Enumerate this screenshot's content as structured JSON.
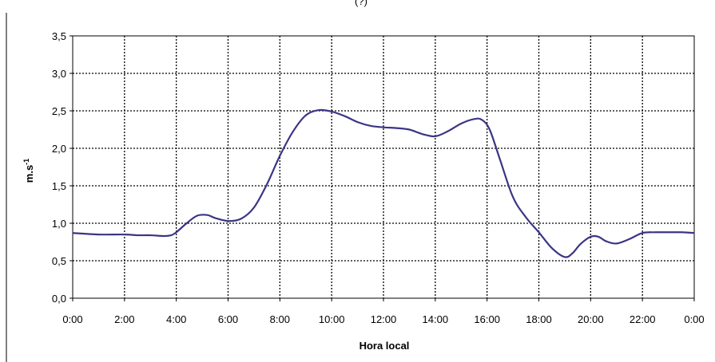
{
  "chart_data": {
    "type": "line",
    "title": "(?)",
    "xlabel": "Hora local",
    "ylabel": "m.s",
    "ylabel_superscript": "-1",
    "xlim": [
      0,
      24
    ],
    "ylim": [
      0,
      3.5
    ],
    "x_ticks": [
      {
        "value": 0,
        "label": "0:00"
      },
      {
        "value": 2,
        "label": "2:00"
      },
      {
        "value": 4,
        "label": "4:00"
      },
      {
        "value": 6,
        "label": "6:00"
      },
      {
        "value": 8,
        "label": "8:00"
      },
      {
        "value": 10,
        "label": "10:00"
      },
      {
        "value": 12,
        "label": "12:00"
      },
      {
        "value": 14,
        "label": "14:00"
      },
      {
        "value": 16,
        "label": "16:00"
      },
      {
        "value": 18,
        "label": "18:00"
      },
      {
        "value": 20,
        "label": "20:00"
      },
      {
        "value": 22,
        "label": "22:00"
      },
      {
        "value": 24,
        "label": "0:00"
      }
    ],
    "y_ticks": [
      {
        "value": 0,
        "label": "0,0"
      },
      {
        "value": 0.5,
        "label": "0,5"
      },
      {
        "value": 1.0,
        "label": "1,0"
      },
      {
        "value": 1.5,
        "label": "1,5"
      },
      {
        "value": 2.0,
        "label": "2,0"
      },
      {
        "value": 2.5,
        "label": "2,5"
      },
      {
        "value": 3.0,
        "label": "3,0"
      },
      {
        "value": 3.5,
        "label": "3,5"
      }
    ],
    "grid": true,
    "grid_style": "dotted",
    "series": [
      {
        "color": "#3b3585",
        "points": [
          [
            0,
            0.87
          ],
          [
            1,
            0.85
          ],
          [
            2,
            0.85
          ],
          [
            2.5,
            0.84
          ],
          [
            3,
            0.84
          ],
          [
            3.5,
            0.83
          ],
          [
            3.8,
            0.84
          ],
          [
            4,
            0.88
          ],
          [
            4.4,
            1.0
          ],
          [
            4.8,
            1.1
          ],
          [
            5.2,
            1.11
          ],
          [
            5.5,
            1.07
          ],
          [
            6,
            1.03
          ],
          [
            6.5,
            1.06
          ],
          [
            7,
            1.21
          ],
          [
            7.5,
            1.52
          ],
          [
            8,
            1.9
          ],
          [
            8.5,
            2.22
          ],
          [
            9,
            2.44
          ],
          [
            9.5,
            2.51
          ],
          [
            10,
            2.49
          ],
          [
            10.5,
            2.43
          ],
          [
            11,
            2.35
          ],
          [
            11.5,
            2.3
          ],
          [
            12,
            2.28
          ],
          [
            12.5,
            2.27
          ],
          [
            13,
            2.25
          ],
          [
            13.5,
            2.19
          ],
          [
            14,
            2.16
          ],
          [
            14.5,
            2.23
          ],
          [
            15,
            2.33
          ],
          [
            15.5,
            2.39
          ],
          [
            15.8,
            2.38
          ],
          [
            16.1,
            2.25
          ],
          [
            16.5,
            1.85
          ],
          [
            17,
            1.35
          ],
          [
            17.5,
            1.08
          ],
          [
            18,
            0.88
          ],
          [
            18.5,
            0.67
          ],
          [
            19,
            0.55
          ],
          [
            19.3,
            0.6
          ],
          [
            19.6,
            0.72
          ],
          [
            20,
            0.82
          ],
          [
            20.3,
            0.82
          ],
          [
            20.6,
            0.76
          ],
          [
            21,
            0.73
          ],
          [
            21.5,
            0.79
          ],
          [
            22,
            0.87
          ],
          [
            22.5,
            0.88
          ],
          [
            23,
            0.88
          ],
          [
            23.5,
            0.88
          ],
          [
            24,
            0.87
          ]
        ]
      }
    ]
  }
}
